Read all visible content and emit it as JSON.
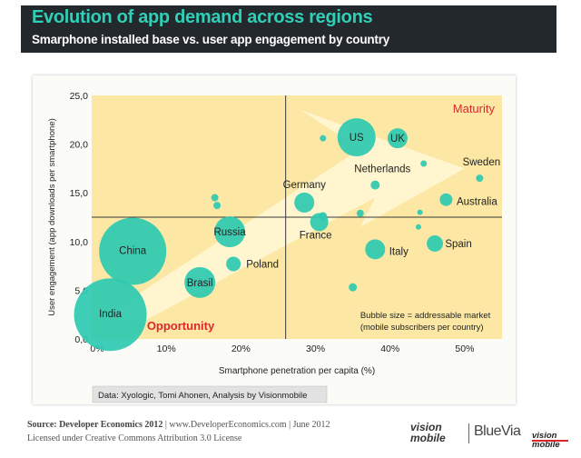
{
  "header": {
    "title": "Evolution of app demand across regions",
    "subtitle": "Smarphone installed base vs. user app engagement by country"
  },
  "chart_data": {
    "type": "scatter",
    "subtype": "bubble",
    "xlabel": "Smartphone penetration per capita (%)",
    "ylabel": "User engagement (app downloads per smartphone)",
    "xlim": [
      0,
      0.55
    ],
    "ylim": [
      0,
      25
    ],
    "xticks": [
      "0%",
      "10%",
      "20%",
      "30%",
      "40%",
      "50%"
    ],
    "xtick_values": [
      0,
      0.1,
      0.2,
      0.3,
      0.4,
      0.5
    ],
    "yticks": [
      "0,0",
      "5,0",
      "10,0",
      "15,0",
      "20,0",
      "25,0"
    ],
    "ytick_values": [
      0,
      5,
      10,
      15,
      20,
      25
    ],
    "quadrant_split": {
      "x": 0.26,
      "y": 12.5
    },
    "quadrants": {
      "top_right": "Maturity",
      "bottom_left": "Opportunity"
    },
    "legend_note": "Bubble size = addressable market\n(mobile subscribers per country)",
    "data_source": "Data: Xyologic, Tomi Ahonen, Analysis by Visionmobile",
    "points": [
      {
        "label": "India",
        "x": 0.025,
        "y": 2.5,
        "size": 40
      },
      {
        "label": "China",
        "x": 0.055,
        "y": 9.0,
        "size": 37
      },
      {
        "label": "Brasil",
        "x": 0.145,
        "y": 5.8,
        "size": 17
      },
      {
        "label": "Russia",
        "x": 0.185,
        "y": 11.0,
        "size": 17
      },
      {
        "label": "Poland",
        "x": 0.19,
        "y": 7.7,
        "size": 8
      },
      {
        "label": "Germany",
        "x": 0.285,
        "y": 14.0,
        "size": 11
      },
      {
        "label": "France",
        "x": 0.305,
        "y": 12.0,
        "size": 10
      },
      {
        "label": "US",
        "x": 0.355,
        "y": 20.7,
        "size": 21
      },
      {
        "label": "UK",
        "x": 0.41,
        "y": 20.6,
        "size": 11
      },
      {
        "label": "Netherlands",
        "x": 0.38,
        "y": 15.8,
        "size": 5
      },
      {
        "label": "Sweden",
        "x": 0.52,
        "y": 16.5,
        "size": 4
      },
      {
        "label": "Australia",
        "x": 0.475,
        "y": 14.3,
        "size": 7
      },
      {
        "label": "Italy",
        "x": 0.38,
        "y": 9.2,
        "size": 11
      },
      {
        "label": "Spain",
        "x": 0.46,
        "y": 9.8,
        "size": 9
      },
      {
        "label": "",
        "x": 0.165,
        "y": 14.5,
        "size": 4
      },
      {
        "label": "",
        "x": 0.168,
        "y": 13.7,
        "size": 4
      },
      {
        "label": "",
        "x": 0.31,
        "y": 20.6,
        "size": 3.5
      },
      {
        "label": "",
        "x": 0.31,
        "y": 12.6,
        "size": 4.5
      },
      {
        "label": "",
        "x": 0.36,
        "y": 12.9,
        "size": 4
      },
      {
        "label": "",
        "x": 0.35,
        "y": 5.3,
        "size": 4.5
      },
      {
        "label": "",
        "x": 0.445,
        "y": 18.0,
        "size": 3.5
      },
      {
        "label": "",
        "x": 0.44,
        "y": 13.0,
        "size": 3
      },
      {
        "label": "",
        "x": 0.438,
        "y": 11.5,
        "size": 3
      }
    ]
  },
  "footer": {
    "source_label": "Source: Developer Economics 2012",
    "source_rest": " | www.DeveloperEconomics.com | June 2012",
    "license": "Licensed under Creative Commons Attribution 3.0 License"
  },
  "logos": {
    "vm_line1": "vision",
    "vm_line2": "mobile",
    "bluevia": "BlueVia"
  },
  "colors": {
    "banner_bg": "#23282c",
    "title": "#2fd0b8",
    "plot_bg": "#fce8a4",
    "bubble": "#2ec9b1",
    "quadrant_label": "#e0262c",
    "arrow": "#fff7d6"
  }
}
